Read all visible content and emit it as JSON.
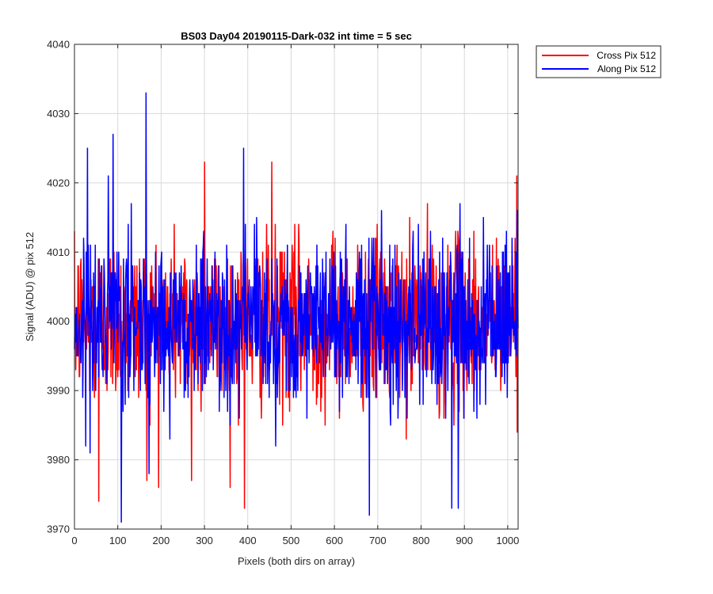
{
  "colors": {
    "cross": "#ff0000",
    "along": "#0000ff",
    "grid": "#d9d9d9",
    "axis": "#262626"
  },
  "chart_data": {
    "type": "line",
    "title": "BS03 Day04 20190115-Dark-032 int time = 5 sec",
    "xlabel": "Pixels (both dirs on array)",
    "ylabel": "Signal (ADU) @ pix 512",
    "xlim": [
      0,
      1024
    ],
    "ylim": [
      3970,
      4040
    ],
    "xticks": [
      0,
      100,
      200,
      300,
      400,
      500,
      600,
      700,
      800,
      900,
      1000
    ],
    "yticks": [
      3970,
      3980,
      3990,
      4000,
      4010,
      4020,
      4030,
      4040
    ],
    "grid": true,
    "legend_position": "outside top-right",
    "noise_summary": {
      "baseline": 4000,
      "typical_spread": 6,
      "note": "dense noise of ~1024 samples per series around 4000 ADU"
    },
    "series": [
      {
        "name": "Cross Pix 512",
        "color": "#ff0000",
        "extremes": [
          {
            "x": 0,
            "y": 4013
          },
          {
            "x": 56,
            "y": 3974
          },
          {
            "x": 167,
            "y": 3977
          },
          {
            "x": 270,
            "y": 3977
          },
          {
            "x": 300,
            "y": 4023
          },
          {
            "x": 392,
            "y": 3973
          },
          {
            "x": 455,
            "y": 4023
          },
          {
            "x": 1020,
            "y": 4021
          }
        ],
        "sample_count": 1024
      },
      {
        "name": "Along Pix 512",
        "color": "#0000ff",
        "extremes": [
          {
            "x": 30,
            "y": 4025
          },
          {
            "x": 89,
            "y": 4027
          },
          {
            "x": 108,
            "y": 3971
          },
          {
            "x": 165,
            "y": 4033
          },
          {
            "x": 390,
            "y": 4025
          },
          {
            "x": 680,
            "y": 3972
          },
          {
            "x": 870,
            "y": 3973
          },
          {
            "x": 885,
            "y": 3973
          }
        ],
        "sample_count": 1024
      }
    ]
  }
}
